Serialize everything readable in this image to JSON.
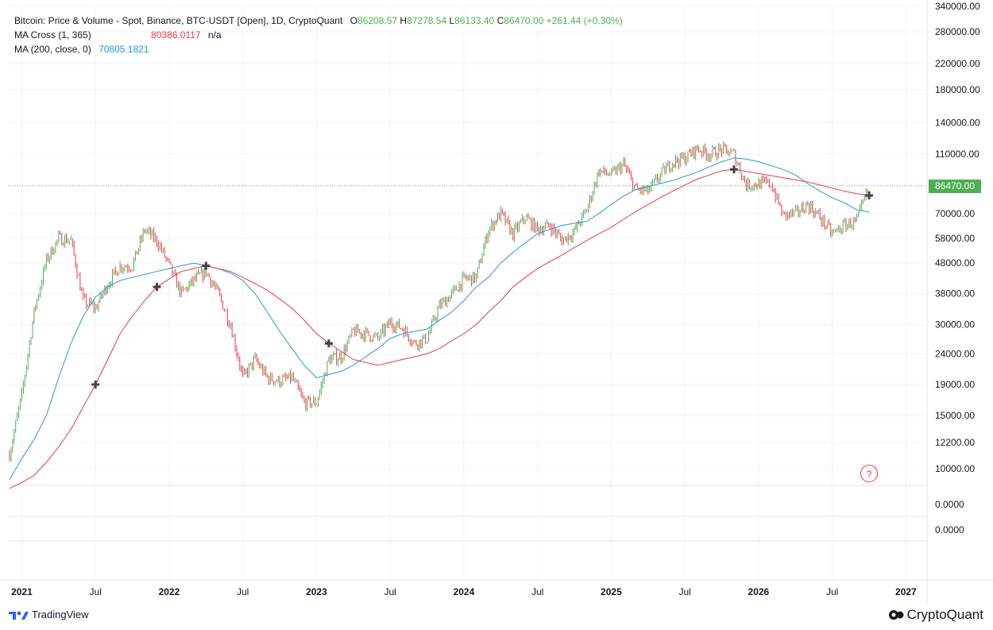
{
  "legend": {
    "main_title": "Bitcoin: Price & Volume - Spot, Binance, BTC-USDT [Open], 1D, CryptoQuant",
    "ohlc": {
      "o_label": "O",
      "o_value": "86208.57",
      "h_label": "H",
      "h_value": "87278.54",
      "l_label": "L",
      "l_value": "86133.40",
      "c_label": "C",
      "c_value": "86470.00",
      "change": "+261.44 (+0.30%)"
    },
    "ma_cross_label": "MA Cross (1, 365)",
    "ma_cross_value": "80386.0117",
    "ma_cross_na": "n/a",
    "ma_label": "MA (200, close, 0)",
    "ma_value": "70805.1821"
  },
  "last_price_tag": "86470.00",
  "help_label": "?",
  "footer": {
    "left_brand": "TradingView",
    "right_brand": "CryptoQuant"
  },
  "colors": {
    "up": "#4caf50",
    "down": "#f23645",
    "ma_cross": "#f23645",
    "ma200": "#2196f3",
    "grid": "#f0f3fa"
  },
  "chart_data": {
    "type": "line",
    "title": "Bitcoin: Price & Volume - Spot, Binance, BTC-USDT [Open], 1D, CryptoQuant",
    "y_scale": "log",
    "ylim": [
      8800,
      340000
    ],
    "x_ticks": [
      "2021",
      "Jul",
      "2022",
      "Jul",
      "2023",
      "Jul",
      "2024",
      "Jul",
      "2025",
      "Jul",
      "2026",
      "Jul",
      "2027"
    ],
    "y_ticks": [
      "340000.00",
      "280000.00",
      "220000.00",
      "180000.00",
      "140000.00",
      "110000.00",
      "86470.00",
      "70000.00",
      "58000.00",
      "48000.00",
      "38000.00",
      "30000.00",
      "24000.00",
      "19000.00",
      "15000.00",
      "12200.00",
      "10000.00"
    ],
    "sub_pane_ticks": [
      "0.0000",
      "0.0000"
    ],
    "last_price": 86470.0,
    "x": [
      "2020-12",
      "2021-01",
      "2021-02",
      "2021-03",
      "2021-04",
      "2021-05",
      "2021-06",
      "2021-07",
      "2021-08",
      "2021-09",
      "2021-10",
      "2021-11",
      "2021-12",
      "2022-01",
      "2022-02",
      "2022-03",
      "2022-04",
      "2022-05",
      "2022-06",
      "2022-07",
      "2022-08",
      "2022-09",
      "2022-10",
      "2022-11",
      "2022-12",
      "2023-01",
      "2023-02",
      "2023-03",
      "2023-04",
      "2023-05",
      "2023-06",
      "2023-07",
      "2023-08",
      "2023-09",
      "2023-10",
      "2023-11",
      "2023-12",
      "2024-01",
      "2024-02",
      "2024-03",
      "2024-04",
      "2024-05",
      "2024-06",
      "2024-07",
      "2024-08",
      "2024-09",
      "2024-10",
      "2024-11",
      "2024-12",
      "2025-01",
      "2025-02",
      "2025-03",
      "2025-04",
      "2025-05",
      "2025-06",
      "2025-07",
      "2025-08",
      "2025-09",
      "2025-10",
      "2025-11",
      "2025-12",
      "2026-01",
      "2026-02",
      "2026-03",
      "2026-04",
      "2026-05",
      "2026-06",
      "2026-07",
      "2026-08",
      "2026-09",
      "2026-10"
    ],
    "series": [
      {
        "name": "Bitcoin: Price & Volume - Spot, Binance, BTC-USDT [Open], 1D, CryptoQuant",
        "values": [
          11200,
          17500,
          33000,
          49000,
          58000,
          57000,
          36000,
          34000,
          41000,
          47000,
          47000,
          62000,
          57000,
          47000,
          38000,
          42000,
          45000,
          38000,
          30000,
          20000,
          23000,
          20000,
          19500,
          20000,
          16500,
          16600,
          23000,
          23500,
          28500,
          28000,
          27000,
          30500,
          29200,
          26000,
          27000,
          34500,
          37800,
          42500,
          43000,
          62000,
          70000,
          60000,
          68000,
          62000,
          64000,
          57000,
          61000,
          72000,
          97000,
          94000,
          102000,
          84000,
          83000,
          94000,
          104000,
          107000,
          115000,
          110000,
          114000,
          110000,
          87000,
          88000,
          88000,
          69000,
          70000,
          75000,
          68000,
          60000,
          64000,
          66000,
          86470
        ]
      },
      {
        "name": "MA (200, close, 0)",
        "values": [
          9200,
          10800,
          12500,
          15000,
          20000,
          26000,
          32000,
          37000,
          40000,
          42000,
          43000,
          44000,
          45000,
          46000,
          47000,
          48000,
          47000,
          46000,
          44500,
          42000,
          38000,
          33000,
          28500,
          25000,
          22000,
          20000,
          20500,
          21000,
          22000,
          23500,
          25000,
          27000,
          28000,
          28500,
          29000,
          31000,
          33000,
          36000,
          40000,
          43000,
          48000,
          52000,
          56000,
          60000,
          62000,
          64000,
          65000,
          66000,
          70000,
          75000,
          80000,
          84000,
          86000,
          88000,
          90000,
          93000,
          96000,
          100000,
          104000,
          107000,
          106000,
          104000,
          101000,
          98000,
          94000,
          88000,
          83000,
          79000,
          76000,
          72000,
          70805
        ]
      },
      {
        "name": "MA Cross (1, 365)",
        "values": [
          8600,
          9000,
          9500,
          10500,
          11800,
          13500,
          16000,
          19000,
          23000,
          28000,
          32000,
          36000,
          40000,
          42500,
          45000,
          46000,
          47000,
          46000,
          45000,
          43000,
          41000,
          39000,
          36500,
          34000,
          31000,
          28000,
          26000,
          24500,
          23000,
          22500,
          22000,
          22500,
          23000,
          23500,
          24000,
          25000,
          26500,
          28000,
          30000,
          33000,
          36000,
          40000,
          43000,
          46000,
          48500,
          51000,
          54000,
          57000,
          60000,
          63000,
          67000,
          71000,
          75000,
          79000,
          83000,
          87000,
          91000,
          94000,
          97000,
          98000,
          96500,
          95000,
          93500,
          92000,
          90500,
          89000,
          87000,
          85000,
          83000,
          81500,
          80386
        ]
      }
    ],
    "cross_markers": [
      "2021-07",
      "2021-12",
      "2022-04",
      "2023-02",
      "2025-11",
      "2026-10"
    ]
  }
}
